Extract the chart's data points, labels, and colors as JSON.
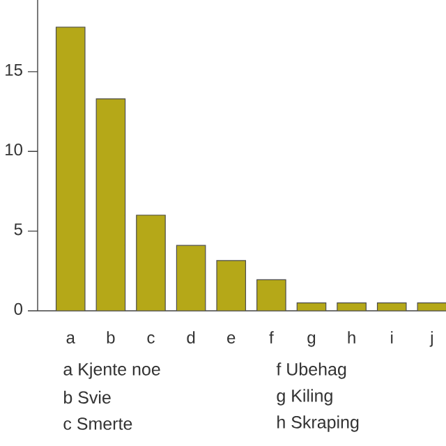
{
  "chart_data": {
    "type": "bar",
    "categories": [
      "a",
      "b",
      "c",
      "d",
      "e",
      "f",
      "g",
      "h",
      "i",
      "j"
    ],
    "values": [
      17.8,
      13.3,
      6.0,
      4.1,
      3.15,
      1.95,
      0.5,
      0.5,
      0.5,
      0.5
    ],
    "color": "#b5a818",
    "ylim": [
      0,
      19.5
    ],
    "yticks": [
      0,
      5,
      10,
      15
    ],
    "grid": false,
    "annotations": [
      "a Kjente noe",
      "b Svie",
      "c Smerte",
      "f Ubehag",
      "g Kiling",
      "h Skraping"
    ]
  }
}
